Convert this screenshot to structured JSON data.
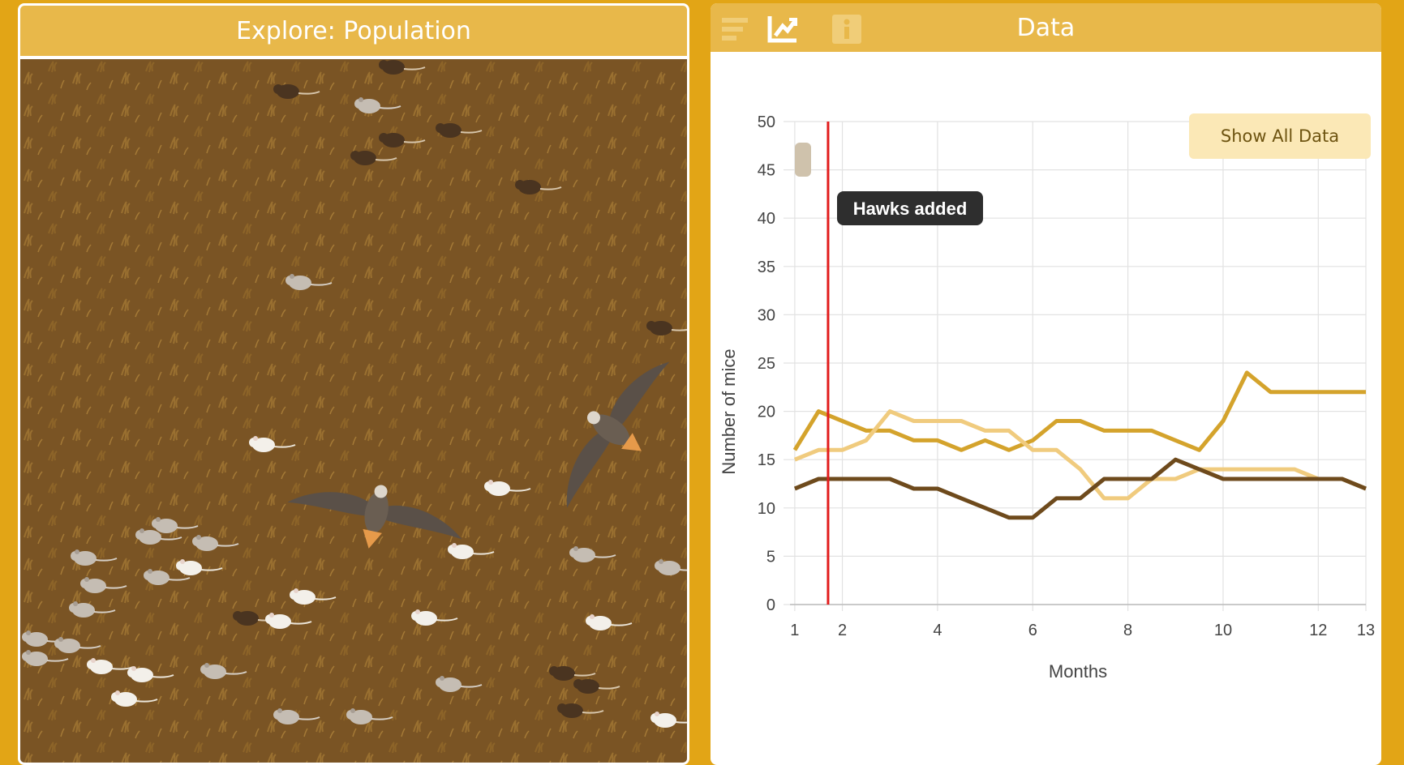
{
  "left_panel": {
    "title": "Explore: Population"
  },
  "right_panel": {
    "title": "Data",
    "icons": [
      "list-icon",
      "chart-icon",
      "info-icon"
    ],
    "show_all_label": "Show All Data",
    "event_label": "Hawks added"
  },
  "colors": {
    "frame": "#e2a516",
    "header": "#e8b84a",
    "ground": "#7a5424",
    "event_line": "#e21c1c",
    "series_colors": [
      "#d4a32c",
      "#f0cb7e",
      "#6e4a1c"
    ]
  },
  "chart_data": {
    "type": "line",
    "xlabel": "Months",
    "ylabel": "Number of mice",
    "xlim": [
      0.9,
      13
    ],
    "ylim": [
      0,
      50
    ],
    "xticks": [
      "1",
      "2",
      "4",
      "6",
      "8",
      "10",
      "12",
      "13"
    ],
    "yticks": [
      "0",
      "5",
      "10",
      "15",
      "20",
      "25",
      "30",
      "35",
      "40",
      "45",
      "50"
    ],
    "grid": true,
    "event_marker_x": 1.7,
    "series": [
      {
        "x": [
          1,
          1.5,
          2,
          2.5,
          3,
          3.5,
          4,
          4.5,
          5,
          5.5,
          6,
          6.5,
          7,
          7.5,
          8,
          8.5,
          9,
          9.5,
          10,
          10.5,
          11,
          11.5,
          12,
          12.5,
          13
        ],
        "values": [
          16,
          20,
          19,
          18,
          18,
          17,
          17,
          16,
          17,
          16,
          17,
          19,
          19,
          18,
          18,
          18,
          17,
          16,
          19,
          24,
          22,
          22,
          22,
          22,
          22
        ]
      },
      {
        "x": [
          1,
          1.5,
          2,
          2.5,
          3,
          3.5,
          4,
          4.5,
          5,
          5.5,
          6,
          6.5,
          7,
          7.5,
          8,
          8.5,
          9,
          9.5,
          10,
          10.5,
          11,
          11.5,
          12,
          12.5,
          13
        ],
        "values": [
          15,
          16,
          16,
          17,
          20,
          19,
          19,
          19,
          18,
          18,
          16,
          16,
          14,
          11,
          11,
          13,
          13,
          14,
          14,
          14,
          14,
          14,
          13,
          13,
          12
        ]
      },
      {
        "x": [
          1,
          1.5,
          2,
          2.5,
          3,
          3.5,
          4,
          4.5,
          5,
          5.5,
          6,
          6.5,
          7,
          7.5,
          8,
          8.5,
          9,
          9.5,
          10,
          10.5,
          11,
          11.5,
          12,
          12.5,
          13
        ],
        "values": [
          12,
          13,
          13,
          13,
          13,
          12,
          12,
          11,
          10,
          9,
          9,
          11,
          11,
          13,
          13,
          13,
          15,
          14,
          13,
          13,
          13,
          13,
          13,
          13,
          12
        ]
      }
    ]
  }
}
